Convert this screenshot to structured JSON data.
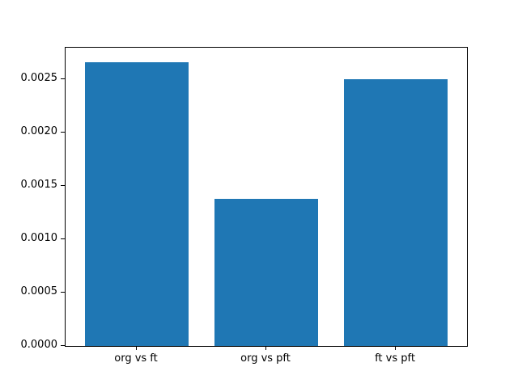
{
  "chart_data": {
    "type": "bar",
    "title": "",
    "xlabel": "",
    "ylabel": "",
    "categories": [
      "org vs ft",
      "org vs pft",
      "ft vs pft"
    ],
    "values": [
      0.00266,
      0.00138,
      0.0025
    ],
    "bar_color": "#1f77b4",
    "background_color": "#ffffff",
    "spine_color": "#000000",
    "ylim": [
      0,
      0.002793
    ],
    "xlim": [
      -0.55,
      2.55
    ],
    "bar_width": 0.8,
    "yticks": [
      0.0,
      0.0005,
      0.001,
      0.0015,
      0.002,
      0.0025
    ],
    "ytick_labels": [
      "0.0000",
      "0.0005",
      "0.0010",
      "0.0015",
      "0.0020",
      "0.0025"
    ],
    "grid": false,
    "legend": null
  }
}
